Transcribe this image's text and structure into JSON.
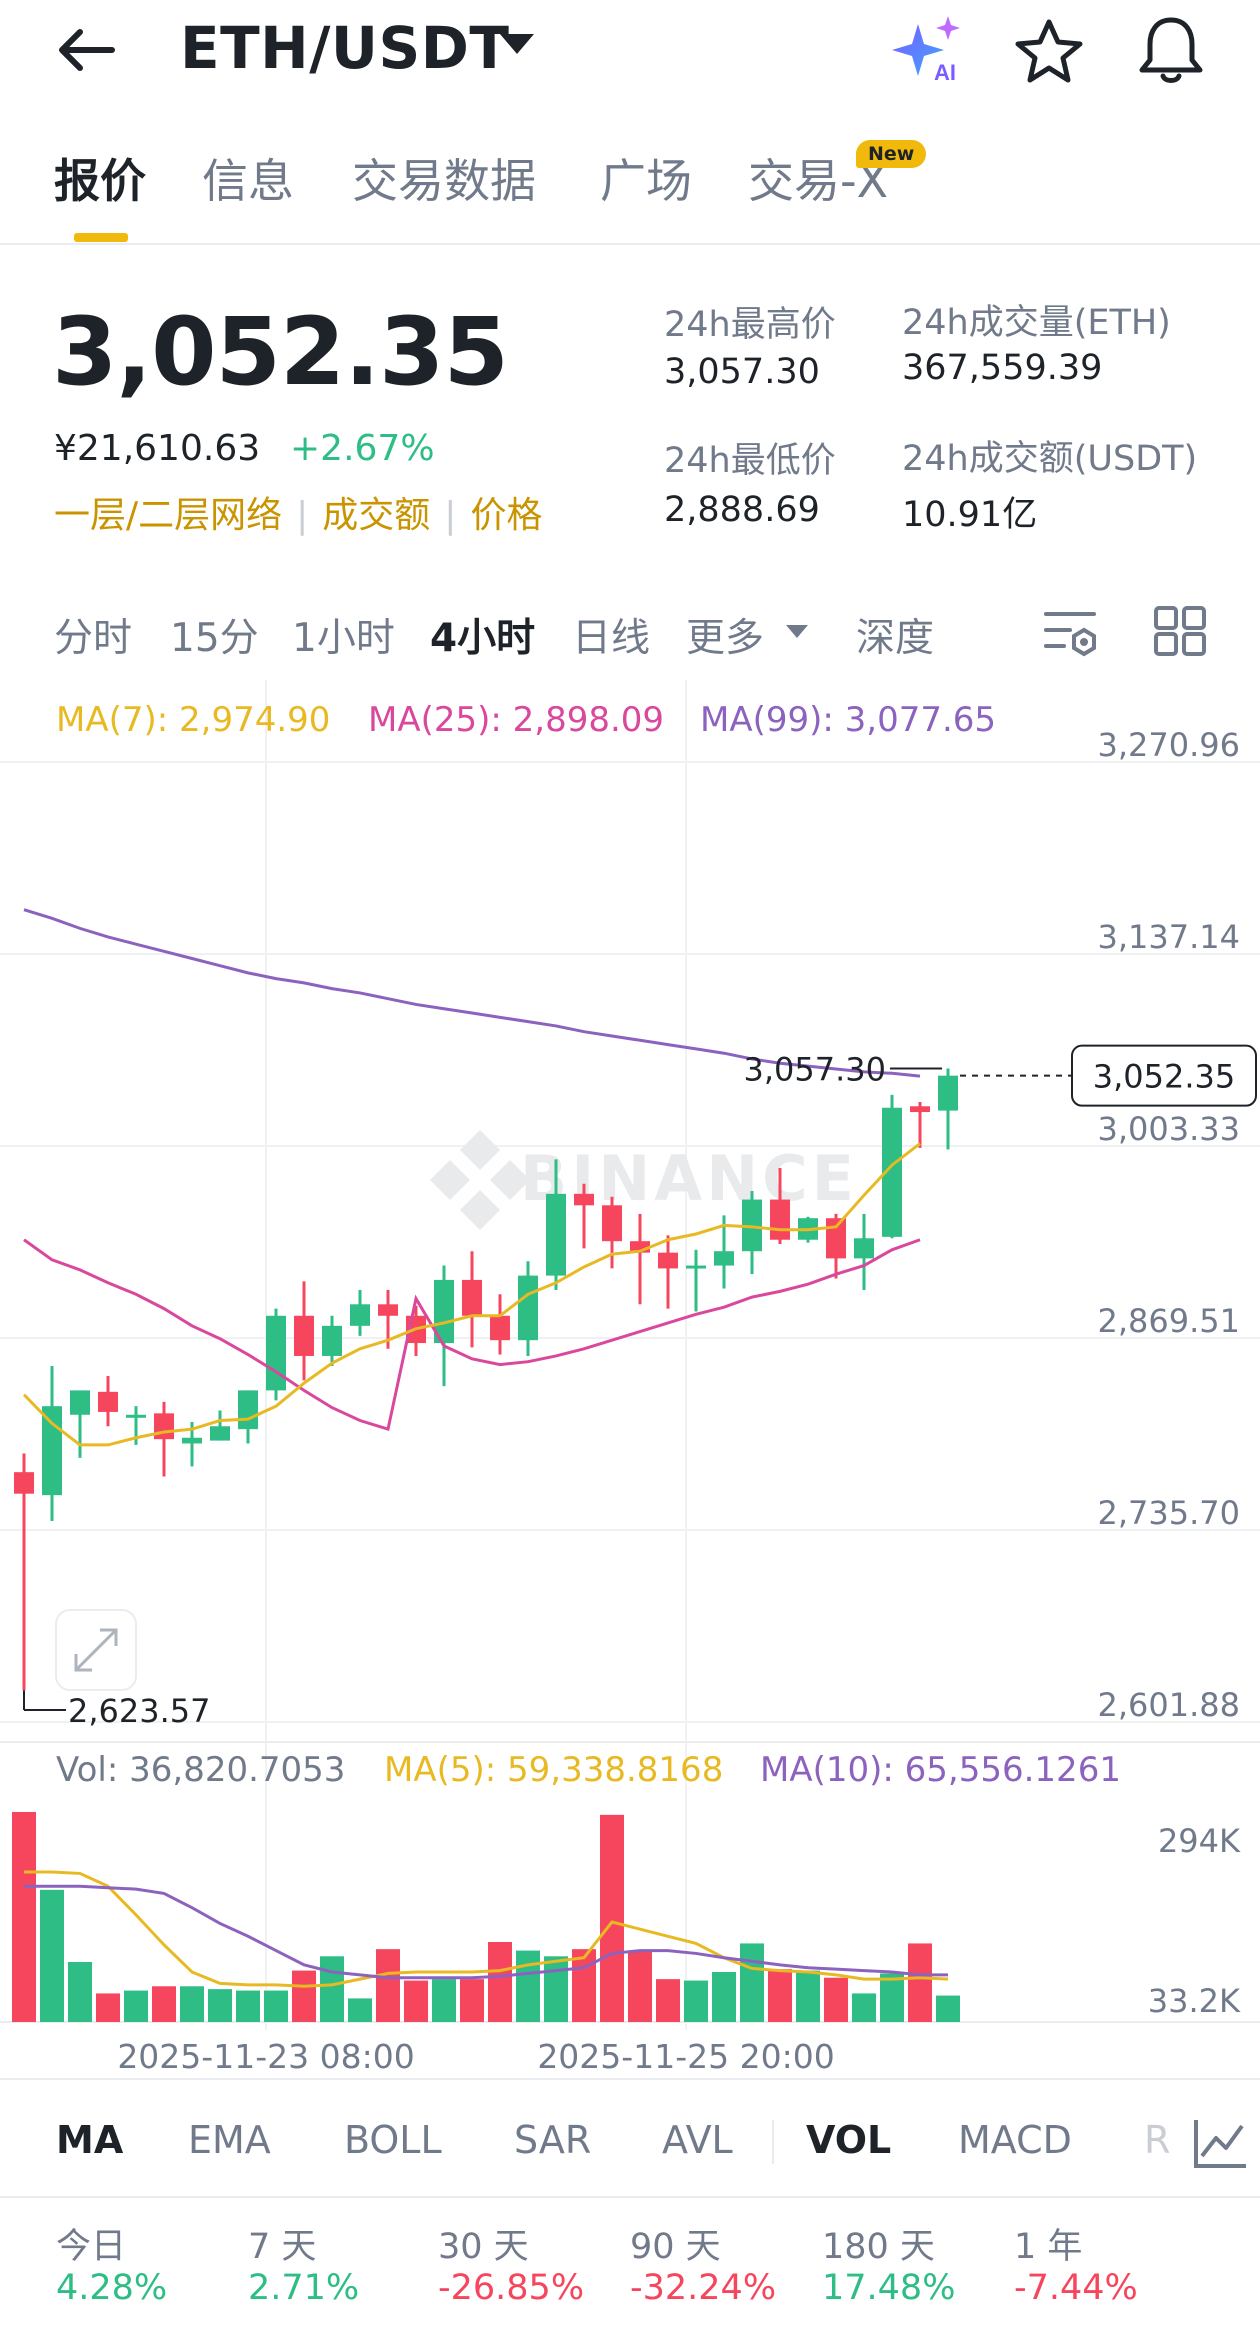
{
  "header": {
    "title": "ETH/USDT",
    "icons": [
      "back-arrow-icon",
      "chevron-down-icon",
      "ai-sparkle-icon",
      "star-icon",
      "bell-icon"
    ]
  },
  "tabs": [
    {
      "label": "报价",
      "active": true
    },
    {
      "label": "信息",
      "active": false
    },
    {
      "label": "交易数据",
      "active": false
    },
    {
      "label": "广场",
      "active": false
    },
    {
      "label": "交易-X",
      "active": false
    }
  ],
  "new_badge": "New",
  "price": {
    "last": "3,052.35",
    "cny": "¥21,610.63",
    "change": "+2.67%",
    "tags": [
      "一层/二层网络",
      "成交额",
      "价格"
    ]
  },
  "stats": {
    "high_label": "24h最高价",
    "high_value": "3,057.30",
    "low_label": "24h最低价",
    "low_value": "2,888.69",
    "vol_eth_label": "24h成交量(ETH)",
    "vol_eth_value": "367,559.39",
    "vol_usdt_label": "24h成交额(USDT)",
    "vol_usdt_value": "10.91亿"
  },
  "intervals": [
    {
      "label": "分时",
      "active": false
    },
    {
      "label": "15分",
      "active": false
    },
    {
      "label": "1小时",
      "active": false
    },
    {
      "label": "4小时",
      "active": true
    },
    {
      "label": "日线",
      "active": false
    },
    {
      "label": "更多",
      "active": false
    },
    {
      "label": "深度",
      "active": false
    }
  ],
  "ma_legend": {
    "ma7": "MA(7): 2,974.90",
    "ma25": "MA(25): 2,898.09",
    "ma99": "MA(99): 3,077.65"
  },
  "vol_legend": {
    "vol": "Vol: 36,820.7053",
    "ma5": "MA(5): 59,338.8168",
    "ma10": "MA(10): 65,556.1261"
  },
  "watermark": "BINANCE",
  "indicators": [
    {
      "label": "MA",
      "active": true
    },
    {
      "label": "EMA",
      "active": false
    },
    {
      "label": "BOLL",
      "active": false
    },
    {
      "label": "SAR",
      "active": false
    },
    {
      "label": "AVL",
      "active": false
    },
    {
      "label": "VOL",
      "active": true
    },
    {
      "label": "MACD",
      "active": false
    },
    {
      "label": "R",
      "active": false
    }
  ],
  "performance": [
    {
      "label": "今日",
      "value": "4.28%",
      "dir": "up"
    },
    {
      "label": "7 天",
      "value": "2.71%",
      "dir": "up"
    },
    {
      "label": "30 天",
      "value": "-26.85%",
      "dir": "down"
    },
    {
      "label": "90 天",
      "value": "-32.24%",
      "dir": "down"
    },
    {
      "label": "180 天",
      "value": "17.48%",
      "dir": "up"
    },
    {
      "label": "1 年",
      "value": "-7.44%",
      "dir": "down"
    }
  ],
  "colors": {
    "up": "#2ebd85",
    "down": "#f6465d",
    "accent": "#f0b90b",
    "ma7": "#e8b923",
    "ma25": "#d9489c",
    "ma99": "#8c62bf"
  },
  "chart_data": {
    "type": "candlestick",
    "interval": "4小时",
    "price_axis_ticks": [
      "3,270.96",
      "3,137.14",
      "3,003.33",
      "2,869.51",
      "2,735.70",
      "2,601.88"
    ],
    "price_axis_values": [
      3270.96,
      3137.14,
      3003.33,
      2869.51,
      2735.7,
      2601.88
    ],
    "ylim": [
      2601.88,
      3270.96
    ],
    "high_marker": "3,057.30",
    "low_marker": "2,623.57",
    "last_price_marker": "3,052.35",
    "time_labels": [
      "2025-11-23 08:00",
      "2025-11-25 20:00"
    ],
    "volume_axis_ticks": [
      "294K",
      "33.2K"
    ],
    "volume_axis_values": [
      294000,
      33200
    ],
    "candles": [
      {
        "o": 2776,
        "h": 2789,
        "c": 2761,
        "l": 2624
      },
      {
        "o": 2760,
        "h": 2850,
        "c": 2822,
        "l": 2742
      },
      {
        "o": 2816,
        "h": 2830,
        "c": 2833,
        "l": 2786
      },
      {
        "o": 2832,
        "h": 2843,
        "c": 2818,
        "l": 2808
      },
      {
        "o": 2816,
        "h": 2822,
        "c": 2816,
        "l": 2795
      },
      {
        "o": 2817,
        "h": 2825,
        "c": 2799,
        "l": 2773
      },
      {
        "o": 2796,
        "h": 2811,
        "c": 2800,
        "l": 2780
      },
      {
        "o": 2798,
        "h": 2819,
        "c": 2808,
        "l": 2800
      },
      {
        "o": 2806,
        "h": 2833,
        "c": 2833,
        "l": 2796
      },
      {
        "o": 2833,
        "h": 2890,
        "c": 2885,
        "l": 2826
      },
      {
        "o": 2885,
        "h": 2909,
        "c": 2857,
        "l": 2840
      },
      {
        "o": 2857,
        "h": 2885,
        "c": 2878,
        "l": 2850
      },
      {
        "o": 2878,
        "h": 2903,
        "c": 2893,
        "l": 2871
      },
      {
        "o": 2893,
        "h": 2903,
        "c": 2885,
        "l": 2862
      },
      {
        "o": 2885,
        "h": 2892,
        "c": 2866,
        "l": 2857
      },
      {
        "o": 2866,
        "h": 2920,
        "c": 2910,
        "l": 2836
      },
      {
        "o": 2910,
        "h": 2930,
        "c": 2885,
        "l": 2863
      },
      {
        "o": 2885,
        "h": 2900,
        "c": 2868,
        "l": 2858
      },
      {
        "o": 2868,
        "h": 2923,
        "c": 2913,
        "l": 2857
      },
      {
        "o": 2913,
        "h": 2994,
        "c": 2970,
        "l": 2903
      },
      {
        "o": 2970,
        "h": 2977,
        "c": 2962,
        "l": 2932
      },
      {
        "o": 2962,
        "h": 2968,
        "c": 2937,
        "l": 2918
      },
      {
        "o": 2937,
        "h": 2956,
        "c": 2929,
        "l": 2893
      },
      {
        "o": 2929,
        "h": 2941,
        "c": 2918,
        "l": 2890
      },
      {
        "o": 2918,
        "h": 2931,
        "c": 2920,
        "l": 2888
      },
      {
        "o": 2920,
        "h": 2955,
        "c": 2930,
        "l": 2904
      },
      {
        "o": 2930,
        "h": 2972,
        "c": 2966,
        "l": 2914
      },
      {
        "o": 2966,
        "h": 2988,
        "c": 2938,
        "l": 2935
      },
      {
        "o": 2938,
        "h": 2954,
        "c": 2953,
        "l": 2936
      },
      {
        "o": 2953,
        "h": 2956,
        "c": 2925,
        "l": 2911
      },
      {
        "o": 2925,
        "h": 2956,
        "c": 2939,
        "l": 2903
      },
      {
        "o": 2940,
        "h": 3039,
        "c": 3030,
        "l": 2939
      },
      {
        "o": 3031,
        "h": 3034,
        "c": 3027,
        "l": 3002
      },
      {
        "o": 3028,
        "h": 3057.3,
        "c": 3052.35,
        "l": 3001
      }
    ],
    "ma7": [
      2830,
      2810,
      2795,
      2795,
      2800,
      2804,
      2806,
      2812,
      2813,
      2822,
      2838,
      2852,
      2862,
      2868,
      2876,
      2880,
      2885,
      2885,
      2900,
      2908,
      2919,
      2928,
      2930,
      2938,
      2942,
      2948,
      2947,
      2945,
      2945,
      2947,
      2969,
      2990,
      3005
    ],
    "ma25": [
      2938,
      2924,
      2917,
      2908,
      2900,
      2890,
      2878,
      2869,
      2858,
      2846,
      2833,
      2821,
      2812,
      2806,
      2897,
      2864,
      2855,
      2851,
      2853,
      2857,
      2862,
      2868,
      2874,
      2880,
      2886,
      2891,
      2898,
      2902,
      2907,
      2914,
      2920,
      2931,
      2938
    ],
    "ma99": [
      3168,
      3162,
      3155,
      3149,
      3144,
      3139,
      3134,
      3129,
      3124,
      3120,
      3117,
      3113,
      3110,
      3106,
      3102,
      3099,
      3096,
      3093,
      3090,
      3087,
      3083,
      3080,
      3077,
      3074,
      3071,
      3068,
      3064,
      3061,
      3059,
      3057,
      3055,
      3054,
      3052
    ],
    "volumes": [
      294,
      185,
      84,
      40,
      44,
      50,
      50,
      46,
      44,
      44,
      72,
      92,
      33,
      102,
      58,
      60,
      60,
      112,
      100,
      92,
      102,
      290,
      100,
      60,
      58,
      70,
      110,
      74,
      72,
      62,
      40,
      68,
      110,
      37
    ],
    "vol_ma5": [
      210,
      210,
      208,
      190,
      150,
      108,
      70,
      54,
      52,
      52,
      50,
      52,
      60,
      68,
      70,
      70,
      70,
      72,
      80,
      85,
      90,
      140,
      130,
      120,
      110,
      90,
      75,
      72,
      70,
      66,
      60,
      60,
      62,
      60
    ],
    "vol_ma10": [
      190,
      190,
      190,
      188,
      186,
      180,
      160,
      138,
      120,
      100,
      80,
      70,
      66,
      62,
      62,
      62,
      62,
      64,
      68,
      72,
      76,
      96,
      100,
      100,
      96,
      90,
      85,
      80,
      76,
      74,
      72,
      70,
      66,
      66
    ]
  }
}
